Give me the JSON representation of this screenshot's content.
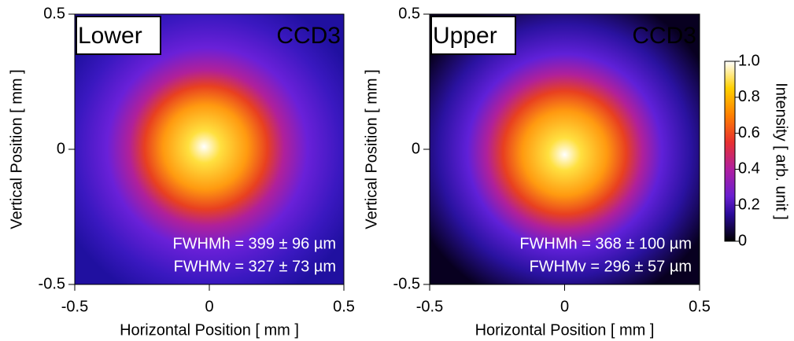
{
  "chart_data": [
    {
      "type": "heatmap",
      "label": "Lower",
      "detector": "CCD3",
      "xlabel": "Horizontal Position [ mm ]",
      "ylabel": "Vertical Position [ mm ]",
      "xlim": [
        -0.5,
        0.5
      ],
      "ylim": [
        -0.5,
        0.5
      ],
      "xticks": [
        -0.5,
        0,
        0.5
      ],
      "yticks": [
        -0.5,
        0,
        0.5
      ],
      "annotations": [
        "FWHMh = 399 ± 96 µm",
        "FWHMv = 327 ± 73 µm"
      ]
    },
    {
      "type": "heatmap",
      "label": "Upper",
      "detector": "CCD3",
      "xlabel": "Horizontal Position [ mm ]",
      "ylabel": "Vertical Position [ mm ]",
      "xlim": [
        -0.5,
        0.5
      ],
      "ylim": [
        -0.5,
        0.5
      ],
      "xticks": [
        -0.5,
        0,
        0.5
      ],
      "yticks": [
        -0.5,
        0,
        0.5
      ],
      "annotations": [
        "FWHMh = 368 ± 100 µm",
        "FWHMv = 296 ± 57 µm"
      ]
    }
  ],
  "colorbar": {
    "label": "Intensity [ arb. unit ]",
    "lim": [
      0,
      1
    ],
    "ticks": [
      0,
      0.2,
      0.4,
      0.6,
      0.8,
      {
        "value": 1,
        "label": "1.0"
      }
    ]
  }
}
